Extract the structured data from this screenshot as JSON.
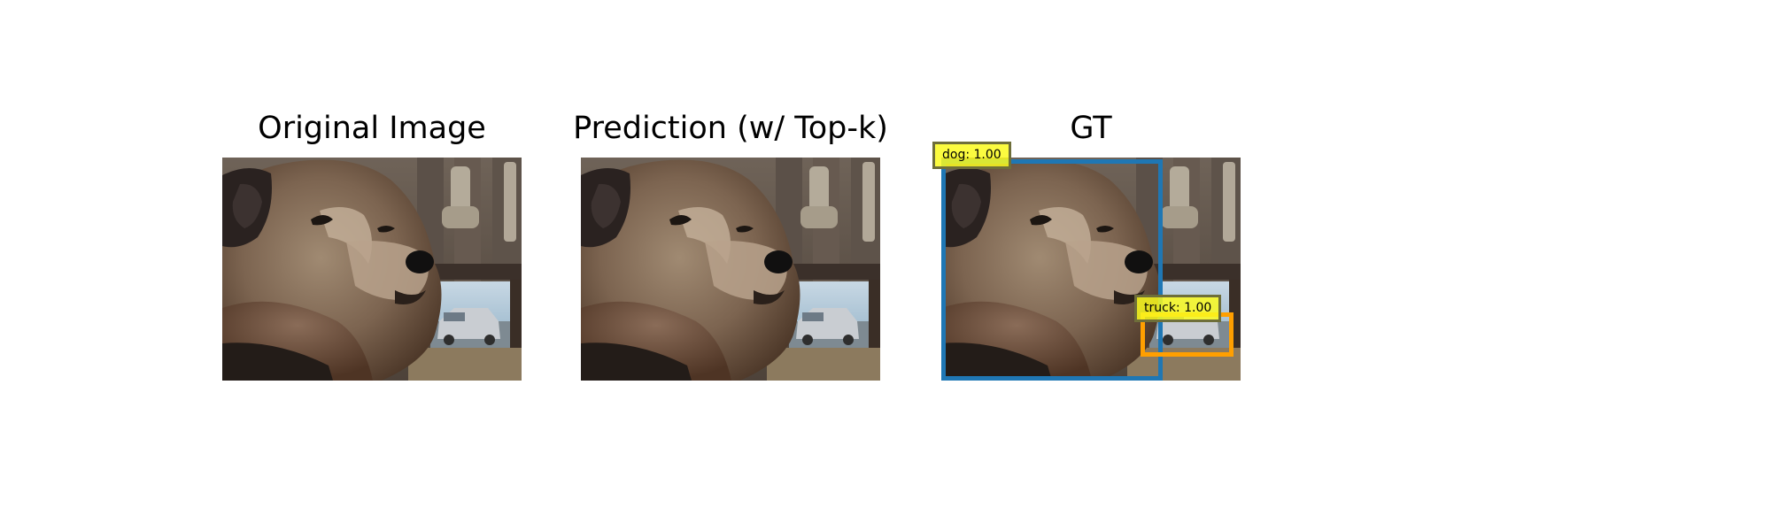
{
  "panels": [
    {
      "title": "Original Image"
    },
    {
      "title": "Prediction (w/ Top-k)"
    },
    {
      "title": "GT"
    }
  ],
  "detections": [
    {
      "label": "dog: 1.00",
      "color": "#1f77b4"
    },
    {
      "label": "truck: 1.00",
      "color": "#ff9f00"
    }
  ],
  "colors": {
    "background": "#ffffff",
    "label_fill": "#f5f51e",
    "label_border": "#6e6e3a"
  }
}
